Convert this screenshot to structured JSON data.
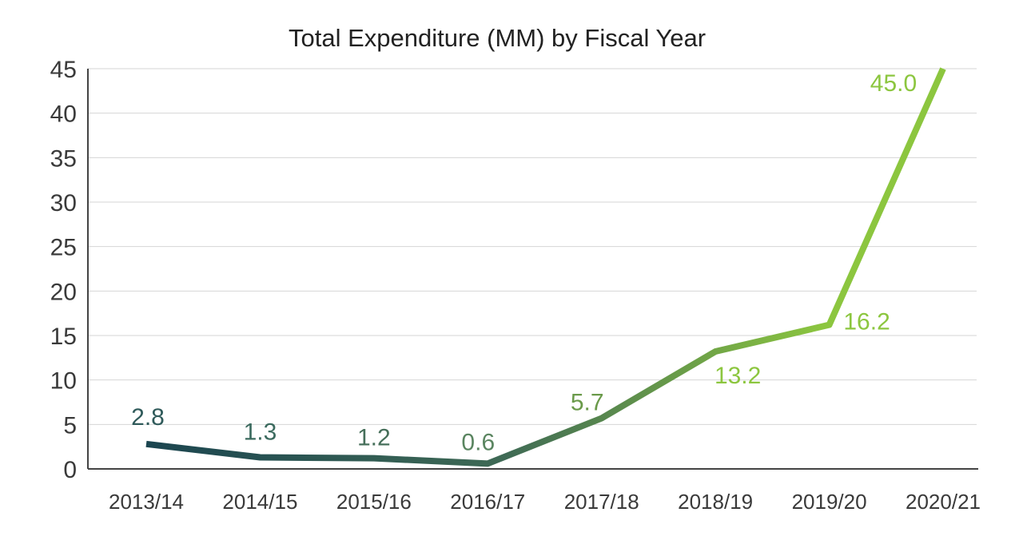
{
  "chart_data": {
    "type": "line",
    "title": "Total Expenditure (MM) by Fiscal Year",
    "xlabel": "",
    "ylabel": "",
    "categories": [
      "2013/14",
      "2014/15",
      "2015/16",
      "2016/17",
      "2017/18",
      "2018/19",
      "2019/20",
      "2020/21"
    ],
    "series": [
      {
        "values": [
          2.8,
          1.3,
          1.2,
          0.6,
          5.7,
          13.2,
          16.2,
          45.0
        ],
        "labels": [
          "2.8",
          "1.3",
          "1.2",
          "0.6",
          "5.7",
          "13.2",
          "16.2",
          "45.0"
        ]
      }
    ],
    "ylim": [
      0,
      45
    ],
    "yticks": [
      "0",
      "5",
      "10",
      "15",
      "20",
      "25",
      "30",
      "35",
      "40",
      "45"
    ],
    "grid": true,
    "legend": "none",
    "colors": {
      "line_start": "#1b4550",
      "line_end": "#8cc63f",
      "label_colors": [
        "#2f5a5a",
        "#3b6a5e",
        "#466f5a",
        "#5a8560",
        "#6a9a4a",
        "#8cc63f",
        "#8cc63f",
        "#8cc63f"
      ],
      "grid": "#d6d6d6",
      "axis": "#444444"
    }
  }
}
